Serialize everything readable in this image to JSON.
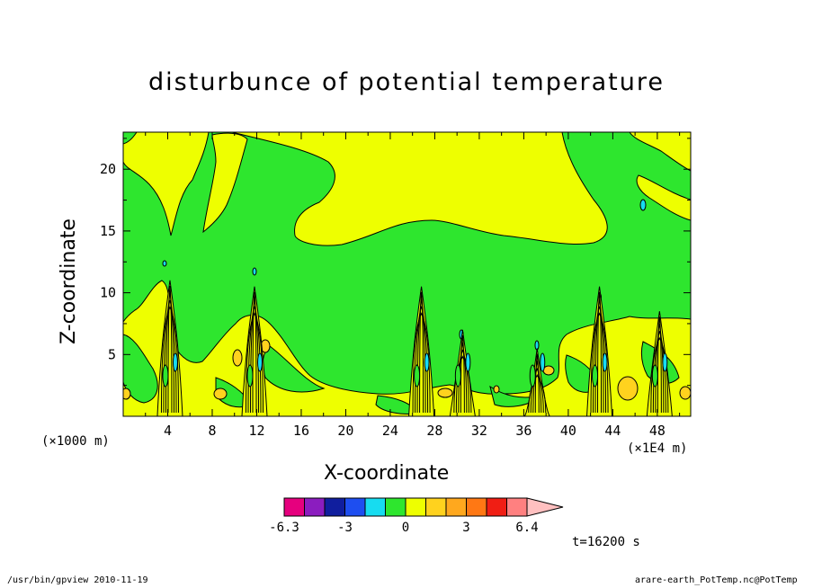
{
  "title": "disturbunce of potential temperature",
  "chart_data": {
    "type": "heatmap",
    "title": "disturbunce of potential temperature",
    "xlabel": "X-coordinate",
    "ylabel": "Z-coordinate",
    "x_unit_left": "(×1000 m)",
    "x_unit_right": "(×1E4 m)",
    "xlim": [
      0,
      51
    ],
    "ylim": [
      0,
      23
    ],
    "x_ticks": [
      4,
      8,
      12,
      16,
      20,
      24,
      28,
      32,
      36,
      40,
      44,
      48
    ],
    "y_ticks": [
      5,
      10,
      15,
      20
    ],
    "convective_towers_x": [
      4.2,
      11.8,
      26.8,
      30.5,
      37.2,
      42.8,
      48.2
    ],
    "upper_warm_region": {
      "x": [
        16,
        43
      ],
      "z": [
        15,
        23
      ],
      "value_range": "0 to 1.5"
    },
    "background_value_range": "-1.5 to 0",
    "colorbar": {
      "colors": [
        "#e6007e",
        "#8b1dbf",
        "#101e9e",
        "#1e4ef0",
        "#17dcf0",
        "#2ee62e",
        "#eeff00",
        "#ffd21e",
        "#ffa81e",
        "#ff7814",
        "#f01e14",
        "#ff8080",
        "#ffc0c0"
      ],
      "tick_labels": [
        "-6.3",
        "-3",
        "0",
        "3",
        "6.4"
      ]
    }
  },
  "time_label": "t=16200 s",
  "footer_left": "/usr/bin/gpview   2010-11-19",
  "footer_right": "arare-earth_PotTemp.nc@PotTemp"
}
